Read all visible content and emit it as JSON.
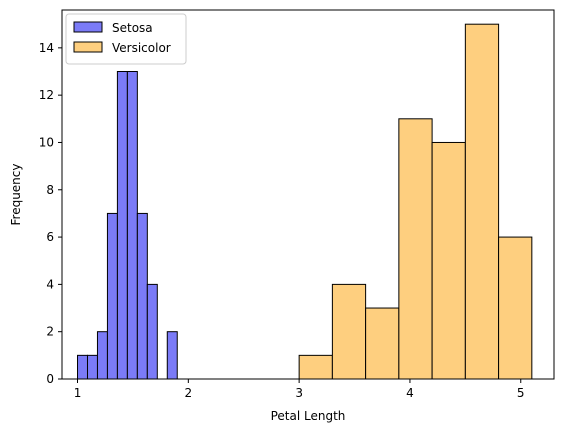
{
  "chart_data": {
    "type": "bar",
    "title": "",
    "xlabel": "Petal Length",
    "ylabel": "Frequency",
    "xlim": [
      0.86,
      5.3
    ],
    "ylim": [
      0,
      15.6
    ],
    "xticks": [
      1,
      2,
      3,
      4,
      5
    ],
    "yticks": [
      0,
      2,
      4,
      6,
      8,
      10,
      12,
      14
    ],
    "grid": false,
    "legend_position": "top-left",
    "series": [
      {
        "name": "Setosa",
        "color": "#7b7bf7",
        "bin_edges": [
          1.0,
          1.09,
          1.18,
          1.27,
          1.36,
          1.45,
          1.54,
          1.63,
          1.72,
          1.81,
          1.9
        ],
        "values": [
          1,
          1,
          2,
          7,
          13,
          13,
          7,
          4,
          0,
          2
        ]
      },
      {
        "name": "Versicolor",
        "color": "#fecf7f",
        "bin_edges": [
          3.0,
          3.3,
          3.6,
          3.9,
          4.2,
          4.5,
          4.8,
          5.1
        ],
        "values": [
          1,
          4,
          3,
          11,
          10,
          15,
          6
        ]
      }
    ]
  }
}
